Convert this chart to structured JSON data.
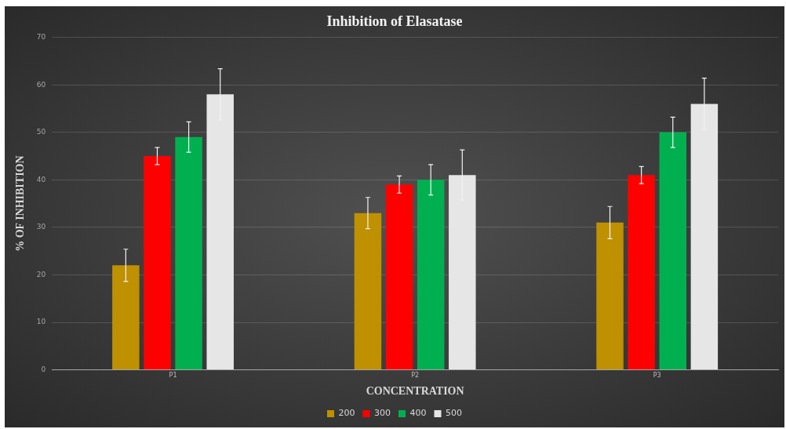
{
  "chart_data": {
    "type": "bar",
    "title": "Inhibition of Elasatase",
    "xlabel": "CONCENTRATION",
    "ylabel": "% OF INHIBITION",
    "categories": [
      "P1",
      "P2",
      "P3"
    ],
    "series": [
      {
        "name": "200",
        "color": "#bf9000",
        "values": [
          22,
          33,
          31
        ],
        "errors": [
          3.4,
          3.3,
          3.4
        ]
      },
      {
        "name": "300",
        "color": "#ff0000",
        "values": [
          45,
          39,
          41
        ],
        "errors": [
          1.8,
          1.8,
          1.8
        ]
      },
      {
        "name": "400",
        "color": "#00b050",
        "values": [
          49,
          40,
          50
        ],
        "errors": [
          3.2,
          3.2,
          3.2
        ]
      },
      {
        "name": "500",
        "color": "#e7e6e6",
        "values": [
          58,
          41,
          56
        ],
        "errors": [
          5.4,
          5.3,
          5.4
        ]
      }
    ],
    "ylim": [
      0,
      70
    ],
    "yticks": [
      0,
      10,
      20,
      30,
      40,
      50,
      60,
      70
    ],
    "grid": "y",
    "legend": "bottom"
  }
}
